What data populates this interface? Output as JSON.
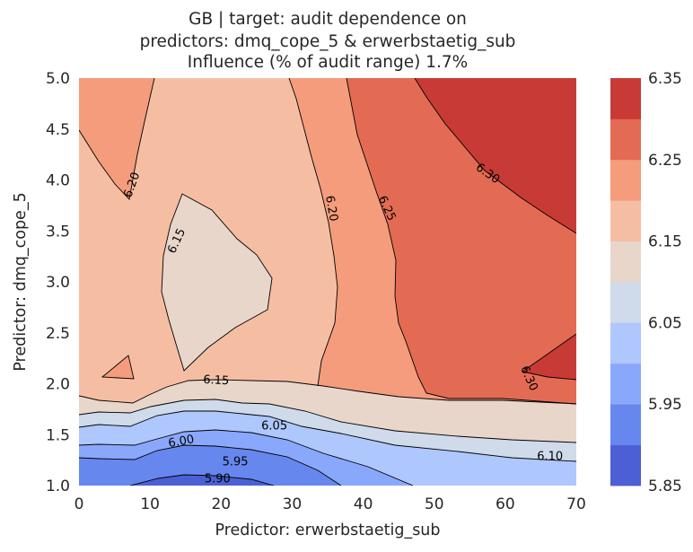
{
  "chart_data": {
    "type": "contour",
    "title_lines": [
      "GB | target: audit dependence on",
      "predictors: dmq_cope_5 & erwerbstaetig_sub",
      "Influence (% of audit range) 1.7%"
    ],
    "xlabel": "Predictor: erwerbstaetig_sub",
    "ylabel": "Predictor: dmq_cope_5",
    "xlim": [
      0,
      70
    ],
    "ylim": [
      1.0,
      5.0
    ],
    "x_ticks": [
      0,
      10,
      20,
      30,
      40,
      50,
      60,
      70
    ],
    "x_tick_labels": [
      "0",
      "10",
      "20",
      "30",
      "40",
      "50",
      "60",
      "70"
    ],
    "y_ticks": [
      1.0,
      1.5,
      2.0,
      2.5,
      3.0,
      3.5,
      4.0,
      4.5,
      5.0
    ],
    "y_tick_labels": [
      "1.0",
      "1.5",
      "2.0",
      "2.5",
      "3.0",
      "3.5",
      "4.0",
      "4.5",
      "5.0"
    ],
    "colorbar": {
      "boundaries": [
        5.85,
        5.9,
        5.95,
        6.0,
        6.05,
        6.1,
        6.15,
        6.2,
        6.25,
        6.3,
        6.35
      ],
      "tick_values": [
        5.85,
        5.95,
        6.05,
        6.15,
        6.25,
        6.35
      ],
      "tick_labels": [
        "5.85",
        "5.95",
        "6.05",
        "6.15",
        "6.25",
        "6.35"
      ],
      "colors": [
        "#4c5fd4",
        "#6687ee",
        "#8aa8fb",
        "#aec7fd",
        "#cfdaea",
        "#e8d6cb",
        "#f5bea3",
        "#f49c7c",
        "#e36b53",
        "#c83a36"
      ]
    },
    "contour_labels": [
      {
        "text": "6.20",
        "x": 7.5,
        "y": 3.95,
        "angle": -70
      },
      {
        "text": "6.15",
        "x": 13.8,
        "y": 3.4,
        "angle": -65
      },
      {
        "text": "6.20",
        "x": 35.5,
        "y": 3.72,
        "angle": 80
      },
      {
        "text": "6.25",
        "x": 43.3,
        "y": 3.72,
        "angle": 65
      },
      {
        "text": "6.30",
        "x": 57.5,
        "y": 4.06,
        "angle": 35
      },
      {
        "text": "6.30",
        "x": 63.3,
        "y": 2.05,
        "angle": 65
      },
      {
        "text": "6.15",
        "x": 19.3,
        "y": 2.03,
        "angle": 3
      },
      {
        "text": "6.05",
        "x": 27.5,
        "y": 1.58,
        "angle": 0
      },
      {
        "text": "6.00",
        "x": 14.4,
        "y": 1.43,
        "angle": -10
      },
      {
        "text": "5.95",
        "x": 22.0,
        "y": 1.23,
        "angle": 0
      },
      {
        "text": "5.90",
        "x": 19.5,
        "y": 1.06,
        "angle": 0
      },
      {
        "text": "6.10",
        "x": 66.3,
        "y": 1.28,
        "angle": 0
      }
    ]
  }
}
